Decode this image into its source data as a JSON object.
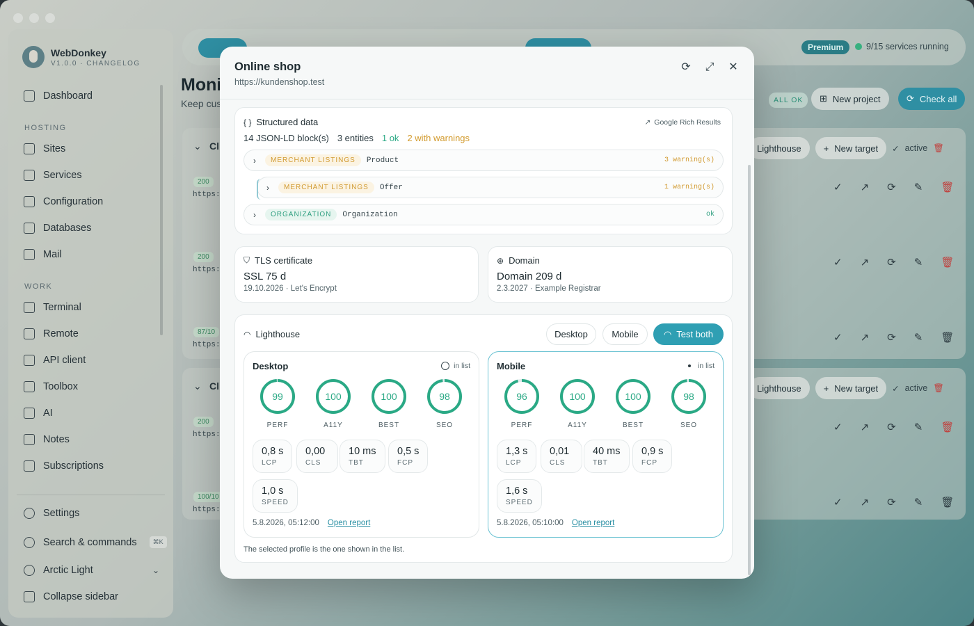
{
  "app": {
    "name": "WebDonkey",
    "version": "V1.0.0 · CHANGELOG"
  },
  "sidebar": {
    "dashboard": "Dashboard",
    "hosting_label": "HOSTING",
    "hosting": [
      {
        "label": "Sites",
        "icon": "globe-icon"
      },
      {
        "label": "Services",
        "icon": "server-icon"
      },
      {
        "label": "Configuration",
        "icon": "config-file-icon"
      },
      {
        "label": "Databases",
        "icon": "database-icon"
      },
      {
        "label": "Mail",
        "icon": "mail-icon"
      }
    ],
    "work_label": "WORK",
    "work": [
      {
        "label": "Terminal",
        "icon": "terminal-icon"
      },
      {
        "label": "Remote",
        "icon": "remote-icon"
      },
      {
        "label": "API client",
        "icon": "api-icon"
      },
      {
        "label": "Toolbox",
        "icon": "wrench-icon"
      },
      {
        "label": "AI",
        "icon": "robot-icon"
      },
      {
        "label": "Notes",
        "icon": "notes-icon"
      },
      {
        "label": "Subscriptions",
        "icon": "card-icon"
      }
    ],
    "settings": "Settings",
    "search": "Search & commands",
    "search_shortcut": "⌘K",
    "theme": "Arctic Light",
    "collapse": "Collapse sidebar"
  },
  "background": {
    "premium": "Premium",
    "services_running": "9/15 services running",
    "title": "Monit",
    "subtitle": "Keep cus",
    "all_ok": "ALL OK",
    "new_project": "New project",
    "check_all": "Check all",
    "lighthouse": "Lighthouse",
    "new_target": "New target",
    "active": "active",
    "group_letter": "Cl",
    "rows": [
      {
        "badge": "200",
        "url": "https:"
      },
      {
        "badge": "200",
        "url": "https:"
      },
      {
        "badge": "87/10",
        "url": "https:"
      },
      {
        "badge": "200",
        "url": "https:"
      },
      {
        "badge": "100/10",
        "url": "https:"
      }
    ]
  },
  "modal": {
    "title": "Online shop",
    "url": "https://kundenshop.test",
    "structured_data": {
      "title": "Structured data",
      "rich_results_link": "Google Rich Results",
      "blocks": "14 JSON-LD block(s)",
      "entities": "3 entities",
      "ok": "1 ok",
      "warnings": "2 with warnings",
      "rows": [
        {
          "tag": "MERCHANT LISTINGS",
          "type": "Product",
          "status": "3 warning(s)",
          "kind": "warn"
        },
        {
          "tag": "MERCHANT LISTINGS",
          "type": "Offer",
          "status": "1 warning(s)",
          "kind": "warn"
        },
        {
          "tag": "ORGANIZATION",
          "type": "Organization",
          "status": "ok",
          "kind": "good"
        }
      ]
    },
    "tls": {
      "title": "TLS certificate",
      "value": "SSL 75 d",
      "detail": "19.10.2026 · Let's Encrypt"
    },
    "domain": {
      "title": "Domain",
      "value": "Domain 209 d",
      "detail": "2.3.2027 · Example Registrar"
    },
    "lighthouse": {
      "title": "Lighthouse",
      "desktop_btn": "Desktop",
      "mobile_btn": "Mobile",
      "test_both_btn": "Test both",
      "in_list": "in list",
      "open_report": "Open report",
      "note": "The selected profile is the one shown in the list.",
      "profiles": [
        {
          "name": "Desktop",
          "selected": false,
          "scores": [
            {
              "label": "PERF",
              "value": 99
            },
            {
              "label": "A11Y",
              "value": 100
            },
            {
              "label": "BEST",
              "value": 100
            },
            {
              "label": "SEO",
              "value": 98
            }
          ],
          "metrics": [
            {
              "value": "0,8 s",
              "label": "LCP"
            },
            {
              "value": "0,00",
              "label": "CLS"
            },
            {
              "value": "10 ms",
              "label": "TBT"
            },
            {
              "value": "0,5 s",
              "label": "FCP"
            },
            {
              "value": "1,0 s",
              "label": "SPEED"
            }
          ],
          "timestamp": "5.8.2026, 05:12:00"
        },
        {
          "name": "Mobile",
          "selected": true,
          "scores": [
            {
              "label": "PERF",
              "value": 96
            },
            {
              "label": "A11Y",
              "value": 100
            },
            {
              "label": "BEST",
              "value": 100
            },
            {
              "label": "SEO",
              "value": 98
            }
          ],
          "metrics": [
            {
              "value": "1,3 s",
              "label": "LCP"
            },
            {
              "value": "0,01",
              "label": "CLS"
            },
            {
              "value": "40 ms",
              "label": "TBT"
            },
            {
              "value": "0,9 s",
              "label": "FCP"
            },
            {
              "value": "1,6 s",
              "label": "SPEED"
            }
          ],
          "timestamp": "5.8.2026, 05:10:00"
        }
      ]
    }
  },
  "colors": {
    "accent": "#2f9fb3",
    "good": "#2aa985",
    "warn": "#d19a30",
    "gauge_track": "#e4ecee"
  }
}
